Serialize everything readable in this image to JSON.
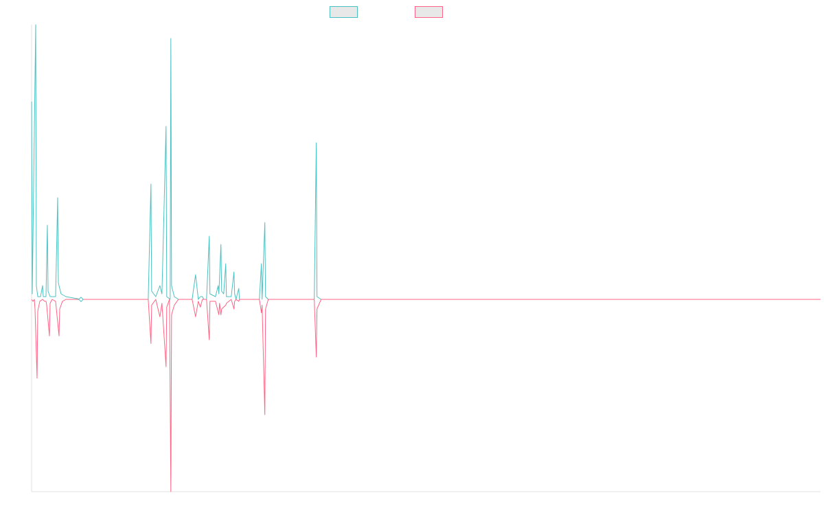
{
  "chart_data": {
    "type": "line",
    "title": "",
    "xlabel": "",
    "ylabel": "",
    "grid": false,
    "legend": "top-center",
    "x_range": [
      0,
      1150
    ],
    "ylim": [
      -1.0,
      1.0
    ],
    "series": [
      {
        "color": "#4bc0c0",
        "fill": "#e8e8e8",
        "points": [
          [
            0,
            0.72
          ],
          [
            1,
            0.02
          ],
          [
            6,
            1.0
          ],
          [
            7,
            0.05
          ],
          [
            9,
            0.01
          ],
          [
            13,
            0.01
          ],
          [
            16,
            0.05
          ],
          [
            17,
            0.01
          ],
          [
            21,
            0.01
          ],
          [
            23,
            0.27
          ],
          [
            24,
            0.03
          ],
          [
            27,
            0.01
          ],
          [
            35,
            0.01
          ],
          [
            38,
            0.37
          ],
          [
            39,
            0.06
          ],
          [
            43,
            0.02
          ],
          [
            50,
            0.01
          ],
          [
            72,
            0.0
          ],
          [
            170,
            0.0
          ],
          [
            174,
            0.42
          ],
          [
            175,
            0.03
          ],
          [
            181,
            0.01
          ],
          [
            187,
            0.05
          ],
          [
            190,
            0.02
          ],
          [
            196,
            0.63
          ],
          [
            197,
            0.01
          ],
          [
            202,
            0.0
          ],
          [
            203,
            0.95
          ],
          [
            204,
            0.05
          ],
          [
            208,
            0.01
          ],
          [
            214,
            0.0
          ],
          [
            234,
            0.0
          ],
          [
            239,
            0.09
          ],
          [
            243,
            0.0
          ],
          [
            246,
            0.01
          ],
          [
            249,
            0.01
          ],
          [
            251,
            0.0
          ],
          [
            255,
            0.0
          ],
          [
            259,
            0.23
          ],
          [
            260,
            0.02
          ],
          [
            268,
            0.01
          ],
          [
            272,
            0.05
          ],
          [
            273,
            0.02
          ],
          [
            276,
            0.2
          ],
          [
            277,
            0.03
          ],
          [
            280,
            0.02
          ],
          [
            283,
            0.13
          ],
          [
            284,
            0.01
          ],
          [
            291,
            0.01
          ],
          [
            295,
            0.1
          ],
          [
            296,
            0.02
          ],
          [
            298,
            0.0
          ],
          [
            302,
            0.04
          ],
          [
            303,
            0.0
          ],
          [
            332,
            0.0
          ],
          [
            335,
            0.13
          ],
          [
            336,
            0.0
          ],
          [
            340,
            0.28
          ],
          [
            341,
            0.01
          ],
          [
            345,
            0.0
          ],
          [
            412,
            0.0
          ],
          [
            415,
            0.57
          ],
          [
            416,
            0.01
          ],
          [
            422,
            0.0
          ],
          [
            1150,
            0.0
          ]
        ]
      },
      {
        "color": "#ff6384",
        "fill": "#e8e8e8",
        "points": [
          [
            0,
            0.0
          ],
          [
            2,
            -0.01
          ],
          [
            4,
            0.0
          ],
          [
            5,
            -0.05
          ],
          [
            8,
            -0.41
          ],
          [
            9,
            -0.06
          ],
          [
            12,
            -0.01
          ],
          [
            16,
            -0.0
          ],
          [
            19,
            -0.01
          ],
          [
            21,
            -0.01
          ],
          [
            22,
            -0.03
          ],
          [
            26,
            -0.19
          ],
          [
            27,
            -0.02
          ],
          [
            30,
            -0.0
          ],
          [
            35,
            -0.01
          ],
          [
            40,
            -0.19
          ],
          [
            41,
            -0.05
          ],
          [
            45,
            -0.01
          ],
          [
            50,
            -0.0
          ],
          [
            72,
            0.0
          ],
          [
            170,
            0.0
          ],
          [
            174,
            -0.23
          ],
          [
            175,
            -0.03
          ],
          [
            181,
            -0.0
          ],
          [
            187,
            -0.09
          ],
          [
            190,
            -0.02
          ],
          [
            196,
            -0.35
          ],
          [
            197,
            -0.04
          ],
          [
            201,
            -0.0
          ],
          [
            203,
            -1.0
          ],
          [
            204,
            -0.08
          ],
          [
            208,
            -0.03
          ],
          [
            214,
            -0.0
          ],
          [
            234,
            0.0
          ],
          [
            239,
            -0.09
          ],
          [
            243,
            -0.01
          ],
          [
            246,
            -0.04
          ],
          [
            249,
            -0.0
          ],
          [
            255,
            -0.0
          ],
          [
            259,
            -0.21
          ],
          [
            260,
            -0.01
          ],
          [
            268,
            -0.01
          ],
          [
            273,
            -0.08
          ],
          [
            274,
            -0.02
          ],
          [
            276,
            -0.08
          ],
          [
            277,
            -0.05
          ],
          [
            280,
            -0.04
          ],
          [
            283,
            -0.03
          ],
          [
            284,
            -0.02
          ],
          [
            291,
            -0.0
          ],
          [
            295,
            -0.05
          ],
          [
            296,
            -0.01
          ],
          [
            298,
            -0.0
          ],
          [
            302,
            -0.01
          ],
          [
            303,
            -0.0
          ],
          [
            332,
            0.0
          ],
          [
            335,
            -0.07
          ],
          [
            336,
            -0.03
          ],
          [
            340,
            -0.6
          ],
          [
            341,
            -0.05
          ],
          [
            345,
            -0.0
          ],
          [
            412,
            0.0
          ],
          [
            415,
            -0.3
          ],
          [
            416,
            -0.05
          ],
          [
            422,
            -0.0
          ],
          [
            1150,
            0.0
          ]
        ]
      }
    ],
    "marker": {
      "x": 72,
      "y": 0.0,
      "color": "#4bc0c0"
    }
  }
}
